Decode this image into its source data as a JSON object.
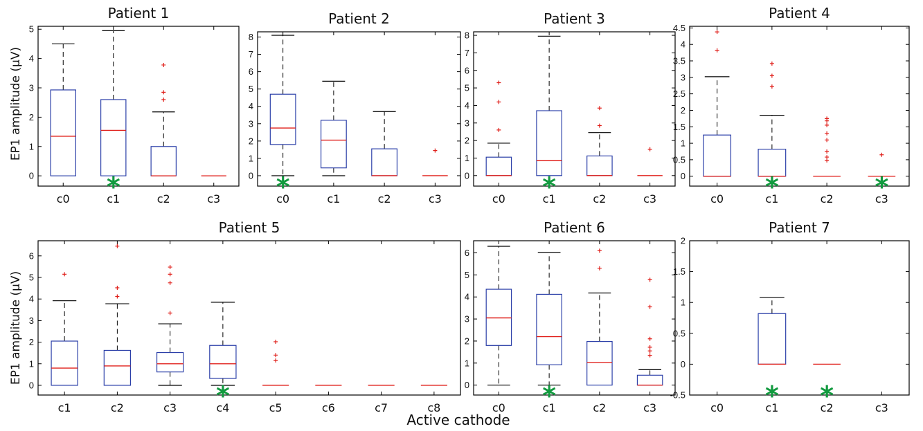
{
  "figure": {
    "ylabel": "EP1 amplitude (µV)",
    "xlabel": "Active cathode"
  },
  "colors": {
    "box": "#2b3fa8",
    "median": "#e0201b",
    "whisker": "#000000",
    "outlier": "#e0201b",
    "star": "#129a3f"
  },
  "chart_data": [
    {
      "type": "boxplot",
      "title": "Patient 1",
      "categories": [
        "c0",
        "c1",
        "c2",
        "c3"
      ],
      "ylim": [
        -0.35,
        5.1
      ],
      "yticks": [
        0,
        1,
        2,
        3,
        4,
        5
      ],
      "ylabel": "EP1 amplitude (µV)",
      "boxes": [
        {
          "q1": 0,
          "median": 1.35,
          "q3": 2.93,
          "whislo": 0,
          "whishi": 4.5,
          "fliers": []
        },
        {
          "q1": 0,
          "median": 1.55,
          "q3": 2.6,
          "whislo": 0,
          "whishi": 4.95,
          "fliers": []
        },
        {
          "q1": 0,
          "median": 0,
          "q3": 1.0,
          "whislo": 0,
          "whishi": 2.18,
          "fliers": [
            2.6,
            2.85,
            3.78
          ]
        },
        {
          "q1": 0,
          "median": 0,
          "q3": 0,
          "whislo": 0,
          "whishi": 0,
          "fliers": []
        }
      ],
      "stars": [
        "c1"
      ]
    },
    {
      "type": "boxplot",
      "title": "Patient 2",
      "categories": [
        "c0",
        "c1",
        "c2",
        "c3"
      ],
      "ylim": [
        -0.6,
        8.3
      ],
      "yticks": [
        0,
        1,
        2,
        3,
        4,
        5,
        6,
        7,
        8
      ],
      "boxes": [
        {
          "q1": 1.8,
          "median": 2.75,
          "q3": 4.7,
          "whislo": 0,
          "whishi": 8.1,
          "fliers": []
        },
        {
          "q1": 0.45,
          "median": 2.05,
          "q3": 3.2,
          "whislo": 0,
          "whishi": 5.45,
          "fliers": []
        },
        {
          "q1": 0,
          "median": 0,
          "q3": 1.55,
          "whislo": 0,
          "whishi": 3.7,
          "fliers": []
        },
        {
          "q1": 0,
          "median": 0,
          "q3": 0,
          "whislo": 0,
          "whishi": 0,
          "fliers": [
            1.45
          ]
        }
      ],
      "stars": [
        "c0"
      ]
    },
    {
      "type": "boxplot",
      "title": "Patient 3",
      "categories": [
        "c0",
        "c1",
        "c2",
        "c3"
      ],
      "ylim": [
        -0.6,
        8.2
      ],
      "yticks": [
        0,
        1,
        2,
        3,
        4,
        5,
        6,
        7,
        8
      ],
      "boxes": [
        {
          "q1": 0,
          "median": 0,
          "q3": 1.05,
          "whislo": 0,
          "whishi": 1.85,
          "fliers": [
            2.6,
            4.2,
            5.3
          ]
        },
        {
          "q1": 0,
          "median": 0.85,
          "q3": 3.7,
          "whislo": 0,
          "whishi": 7.95,
          "fliers": []
        },
        {
          "q1": 0,
          "median": 0,
          "q3": 1.12,
          "whislo": 0,
          "whishi": 2.45,
          "fliers": [
            2.85,
            3.85
          ]
        },
        {
          "q1": 0,
          "median": 0,
          "q3": 0,
          "whislo": 0,
          "whishi": 0,
          "fliers": [
            1.5
          ]
        }
      ],
      "stars": [
        "c1"
      ]
    },
    {
      "type": "boxplot",
      "title": "Patient 4",
      "categories": [
        "c0",
        "c1",
        "c2",
        "c3"
      ],
      "ylim": [
        -0.3,
        4.55
      ],
      "yticks": [
        0,
        0.5,
        1,
        1.5,
        2,
        2.5,
        3,
        3.5,
        4,
        4.5
      ],
      "ytick_labels": [
        "0",
        "0.5",
        "1",
        "1.5",
        "2",
        "2.5",
        "3",
        "3.5",
        "4",
        "4.5"
      ],
      "boxes": [
        {
          "q1": 0,
          "median": 0,
          "q3": 1.25,
          "whislo": 0,
          "whishi": 3.02,
          "fliers": [
            3.82,
            4.38
          ]
        },
        {
          "q1": 0,
          "median": 0,
          "q3": 0.82,
          "whislo": 0,
          "whishi": 1.85,
          "fliers": [
            2.72,
            3.05,
            3.42
          ]
        },
        {
          "q1": 0,
          "median": 0,
          "q3": 0,
          "whislo": 0,
          "whishi": 0,
          "fliers": [
            0.48,
            0.58,
            0.75,
            1.1,
            1.3,
            1.55,
            1.68,
            1.75
          ]
        },
        {
          "q1": 0,
          "median": 0,
          "q3": 0,
          "whislo": 0,
          "whishi": 0,
          "fliers": [
            0.65
          ]
        }
      ],
      "stars": [
        "c1",
        "c3"
      ]
    },
    {
      "type": "boxplot",
      "title": "Patient 5",
      "categories": [
        "c1",
        "c2",
        "c3",
        "c4",
        "c5",
        "c6",
        "c7",
        "c8"
      ],
      "ylim": [
        -0.45,
        6.7
      ],
      "yticks": [
        0,
        1,
        2,
        3,
        4,
        5,
        6
      ],
      "ylabel": "EP1 amplitude (µV)",
      "boxes": [
        {
          "q1": 0,
          "median": 0.8,
          "q3": 2.05,
          "whislo": 0,
          "whishi": 3.92,
          "fliers": [
            5.15
          ]
        },
        {
          "q1": 0,
          "median": 0.9,
          "q3": 1.62,
          "whislo": 0,
          "whishi": 3.78,
          "fliers": [
            4.12,
            4.52,
            6.45
          ]
        },
        {
          "q1": 0.62,
          "median": 1.0,
          "q3": 1.52,
          "whislo": 0,
          "whishi": 2.85,
          "fliers": [
            3.35,
            4.75,
            5.15,
            5.48
          ]
        },
        {
          "q1": 0.32,
          "median": 1.0,
          "q3": 1.85,
          "whislo": 0,
          "whishi": 3.85,
          "fliers": []
        },
        {
          "q1": 0,
          "median": 0,
          "q3": 0,
          "whislo": 0,
          "whishi": 0,
          "fliers": [
            1.15,
            1.4,
            2.02
          ]
        },
        {
          "q1": 0,
          "median": 0,
          "q3": 0,
          "whislo": 0,
          "whishi": 0,
          "fliers": []
        },
        {
          "q1": 0,
          "median": 0,
          "q3": 0,
          "whislo": 0,
          "whishi": 0,
          "fliers": []
        },
        {
          "q1": 0,
          "median": 0,
          "q3": 0,
          "whislo": 0,
          "whishi": 0,
          "fliers": []
        }
      ],
      "stars": [
        "c4"
      ]
    },
    {
      "type": "boxplot",
      "title": "Patient 6",
      "categories": [
        "c0",
        "c1",
        "c2",
        "c3"
      ],
      "ylim": [
        -0.45,
        6.55
      ],
      "yticks": [
        0,
        1,
        2,
        3,
        4,
        5,
        6
      ],
      "boxes": [
        {
          "q1": 1.8,
          "median": 3.05,
          "q3": 4.35,
          "whislo": 0,
          "whishi": 6.3,
          "fliers": []
        },
        {
          "q1": 0.92,
          "median": 2.2,
          "q3": 4.12,
          "whislo": 0,
          "whishi": 6.02,
          "fliers": []
        },
        {
          "q1": 0,
          "median": 1.02,
          "q3": 1.98,
          "whislo": 0,
          "whishi": 4.18,
          "fliers": [
            5.3,
            6.1
          ]
        },
        {
          "q1": 0,
          "median": 0,
          "q3": 0.45,
          "whislo": 0,
          "whishi": 0.7,
          "fliers": [
            1.35,
            1.55,
            1.72,
            2.1,
            3.55,
            4.78
          ]
        }
      ],
      "stars": [
        "c1"
      ]
    },
    {
      "type": "boxplot",
      "title": "Patient 7",
      "categories": [
        "c0",
        "c1",
        "c2",
        "c3"
      ],
      "ylim": [
        -0.5,
        2.0
      ],
      "yticks": [
        -0.5,
        0,
        0.5,
        1,
        1.5,
        2
      ],
      "ytick_labels": [
        "-0.5",
        "0",
        "0.5",
        "1",
        "1.5",
        "2"
      ],
      "boxes": [
        null,
        {
          "q1": 0,
          "median": 0,
          "q3": 0.82,
          "whislo": 0,
          "whishi": 1.08,
          "fliers": []
        },
        {
          "q1": 0,
          "median": 0,
          "q3": 0,
          "whislo": 0,
          "whishi": 0,
          "fliers": []
        },
        null
      ],
      "stars": [
        "c1",
        "c2"
      ]
    }
  ]
}
